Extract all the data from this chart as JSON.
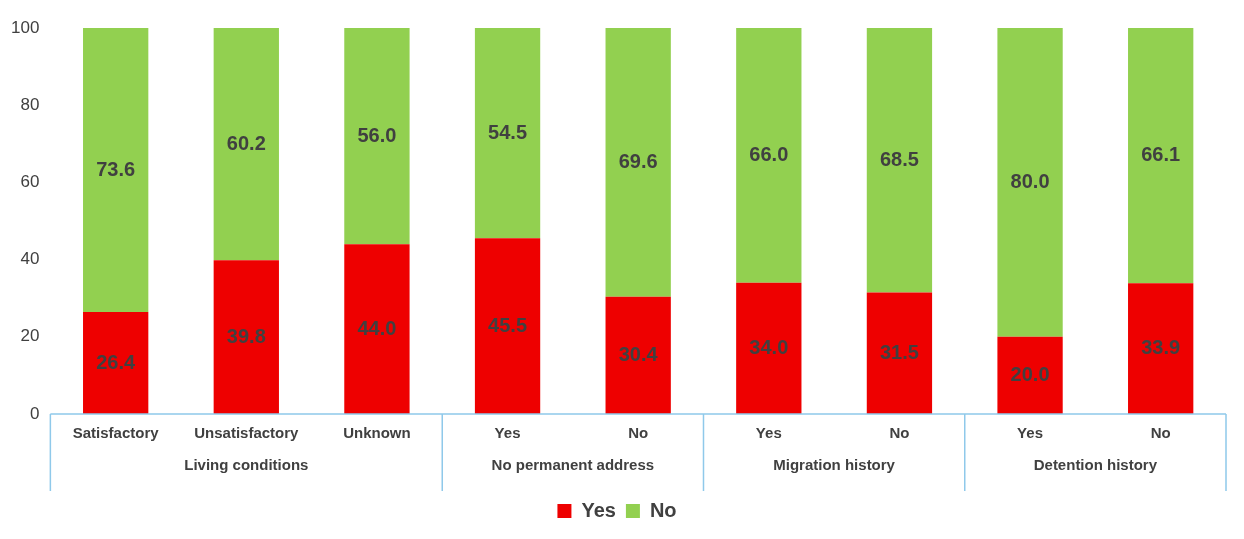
{
  "chart_data": {
    "type": "bar",
    "stacked": true,
    "categories": [
      "Satisfactory",
      "Unsatisfactory",
      "Unknown",
      "Yes",
      "No",
      "Yes",
      "No",
      "Yes",
      "No"
    ],
    "series": [
      {
        "name": "Yes",
        "color": "#ee0000",
        "values": [
          26.4,
          39.8,
          44.0,
          45.5,
          30.4,
          34.0,
          31.5,
          20.0,
          33.9
        ],
        "value_labels": [
          "26.4",
          "39.8",
          "44.0",
          "45.5",
          "30.4",
          "34.0",
          "31.5",
          "20.0",
          "33.9"
        ]
      },
      {
        "name": "No",
        "color": "#92d050",
        "values": [
          73.6,
          60.2,
          56.0,
          54.5,
          69.6,
          66.0,
          68.5,
          80.0,
          66.1
        ],
        "value_labels": [
          "73.6",
          "60.2",
          "56.0",
          "54.5",
          "69.6",
          "66.0",
          "68.5",
          "80.0",
          "66.1"
        ]
      }
    ],
    "ylim": [
      0,
      100
    ],
    "yticks": [
      0,
      20,
      40,
      60,
      80,
      100
    ],
    "grid": false,
    "legend": "bottom",
    "annotations": [
      "Living conditions",
      "No permanent address",
      "Migration history",
      "Detention history"
    ]
  }
}
